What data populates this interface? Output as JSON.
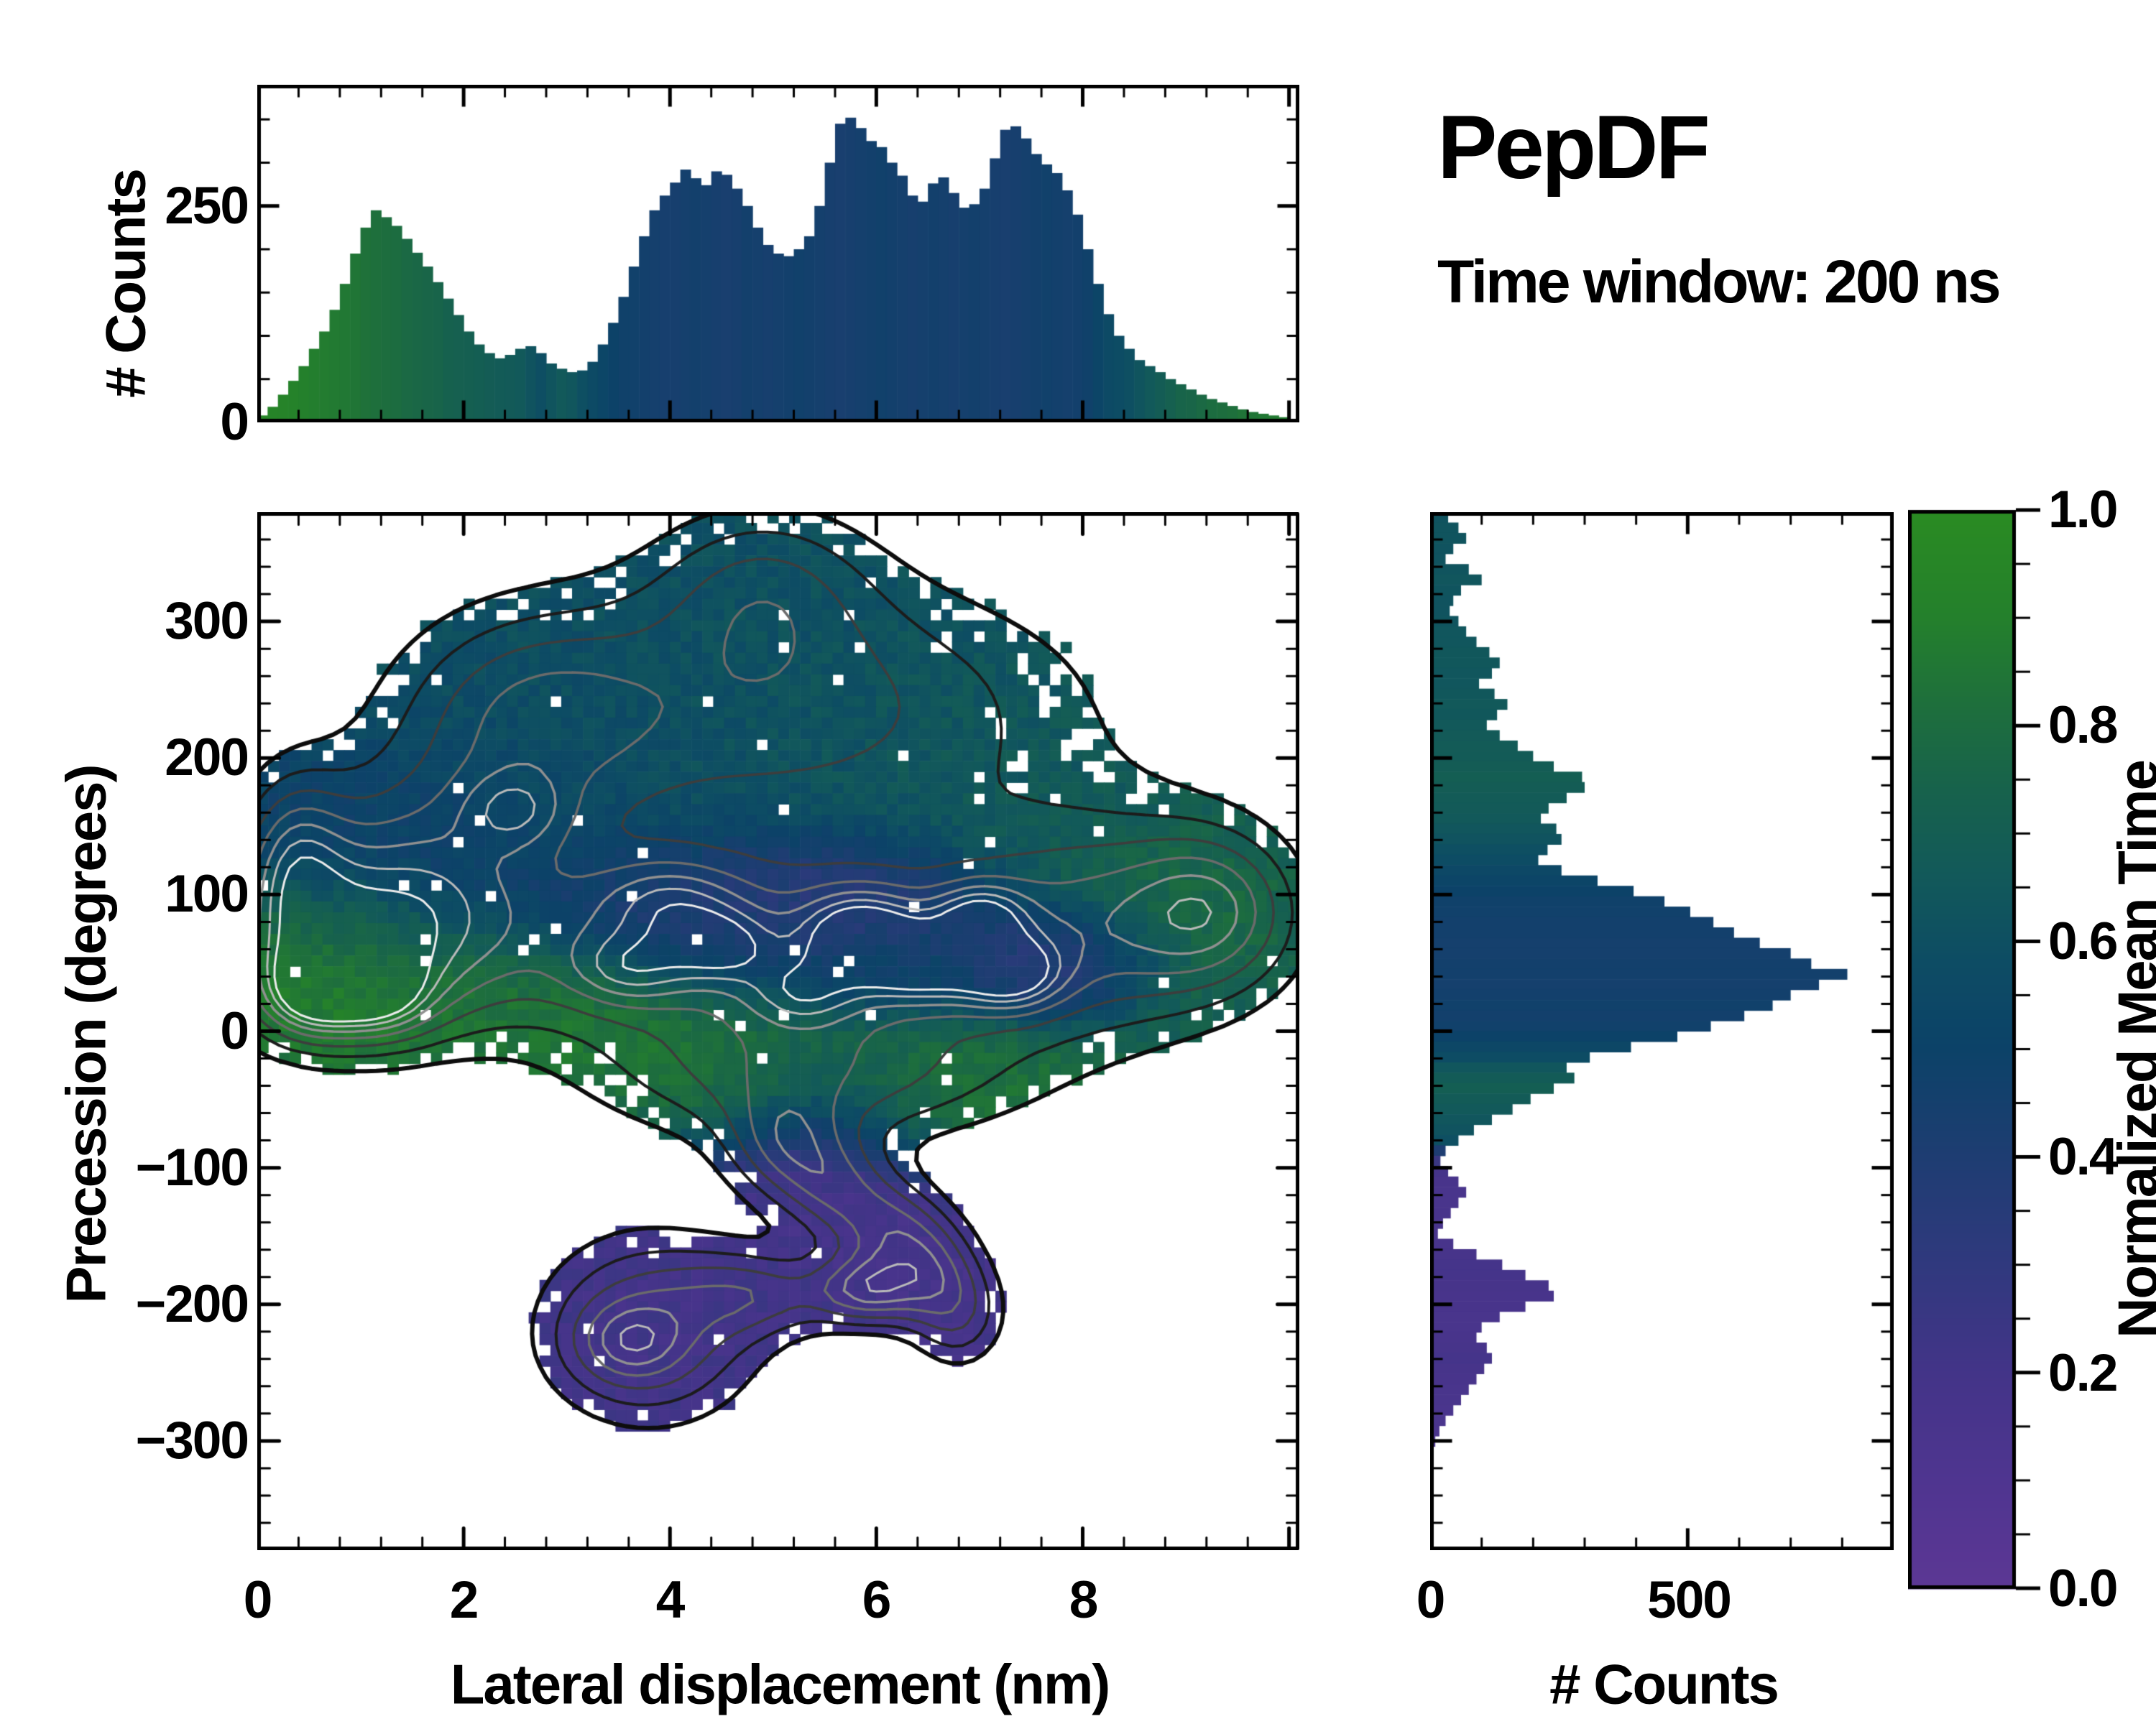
{
  "title": "PepDF",
  "subtitle": "Time window: 200 ns",
  "chart_data": {
    "type": "heatmap",
    "description": "2D histogram of precession vs lateral displacement colored by normalized mean time, with marginal count histograms and a colorbar",
    "colormap": {
      "stops": [
        [
          0.0,
          "#5c3794"
        ],
        [
          0.1,
          "#4f3590"
        ],
        [
          0.2,
          "#433488"
        ],
        [
          0.3,
          "#30397e"
        ],
        [
          0.4,
          "#1e3d72"
        ],
        [
          0.5,
          "#0c4268"
        ],
        [
          0.58,
          "#0d4c64"
        ],
        [
          0.66,
          "#12595a"
        ],
        [
          0.74,
          "#17624c"
        ],
        [
          0.82,
          "#1e6f3c"
        ],
        [
          0.9,
          "#24802c"
        ],
        [
          1.0,
          "#2a8b22"
        ]
      ]
    },
    "top_hist": {
      "ylabel": "# Counts",
      "ytick_labels": [
        "250",
        "0"
      ],
      "y_major": [
        0,
        250
      ],
      "y_minor_step": 50,
      "ylim": [
        0,
        390
      ],
      "x_range": [
        0,
        10.1
      ],
      "x_major": [
        0,
        2,
        4,
        6,
        8,
        10
      ],
      "x_minor_step": 0.4,
      "heights": [
        8,
        18,
        32,
        48,
        65,
        85,
        105,
        130,
        160,
        195,
        225,
        245,
        237,
        227,
        212,
        196,
        180,
        162,
        143,
        124,
        105,
        90,
        80,
        74,
        78,
        85,
        88,
        80,
        68,
        62,
        58,
        60,
        70,
        90,
        115,
        145,
        180,
        215,
        245,
        262,
        277,
        292,
        282,
        274,
        290,
        286,
        270,
        250,
        225,
        205,
        195,
        192,
        200,
        215,
        250,
        300,
        345,
        352,
        340,
        325,
        318,
        300,
        285,
        262,
        255,
        276,
        283,
        265,
        248,
        252,
        270,
        305,
        338,
        342,
        328,
        310,
        298,
        288,
        268,
        240,
        200,
        160,
        125,
        100,
        85,
        72,
        65,
        58,
        50,
        44,
        38,
        32,
        27,
        23,
        19,
        15,
        12,
        10,
        8,
        6
      ],
      "values": [
        0.95,
        0.94,
        0.93,
        0.92,
        0.9,
        0.89,
        0.88,
        0.87,
        0.86,
        0.85,
        0.83,
        0.82,
        0.81,
        0.8,
        0.78,
        0.77,
        0.76,
        0.75,
        0.73,
        0.72,
        0.71,
        0.7,
        0.69,
        0.68,
        0.67,
        0.66,
        0.62,
        0.59,
        0.63,
        0.66,
        0.64,
        0.6,
        0.56,
        0.53,
        0.5,
        0.48,
        0.47,
        0.46,
        0.45,
        0.44,
        0.44,
        0.45,
        0.46,
        0.45,
        0.44,
        0.43,
        0.44,
        0.46,
        0.45,
        0.44,
        0.45,
        0.46,
        0.47,
        0.46,
        0.45,
        0.44,
        0.43,
        0.44,
        0.45,
        0.46,
        0.47,
        0.46,
        0.45,
        0.44,
        0.45,
        0.46,
        0.45,
        0.44,
        0.45,
        0.46,
        0.45,
        0.44,
        0.43,
        0.44,
        0.45,
        0.46,
        0.47,
        0.46,
        0.45,
        0.46,
        0.48,
        0.52,
        0.56,
        0.58,
        0.6,
        0.63,
        0.66,
        0.69,
        0.72,
        0.75,
        0.76,
        0.78,
        0.8,
        0.81,
        0.82,
        0.84,
        0.85,
        0.86,
        0.87,
        0.88
      ]
    },
    "main_heatmap": {
      "xlabel": "Lateral displacement (nm)",
      "ylabel": "Precession (degrees)",
      "xtick_labels": [
        "0",
        "2",
        "4",
        "6",
        "8"
      ],
      "ytick_labels": [
        "300",
        "200",
        "100",
        "0",
        "−100",
        "−200",
        "−300"
      ],
      "x_major": [
        0,
        2,
        4,
        6,
        8,
        10
      ],
      "x_minor_step": 0.4,
      "y_major": [
        -300,
        -200,
        -100,
        0,
        100,
        200,
        300
      ],
      "y_minor_step": 20,
      "xlim": [
        0,
        10.1
      ],
      "ylim": [
        -380,
        380
      ],
      "grid": [
        96,
        96
      ],
      "seed": 7,
      "fill_threshold": 0.21,
      "background_value": {
        "v": 0.58,
        "w": 0.08
      },
      "density_blobs": [
        [
          5.1,
          235,
          2.2,
          75,
          0.5
        ],
        [
          4.9,
          330,
          0.75,
          45,
          0.3
        ],
        [
          2.6,
          230,
          0.9,
          55,
          0.35
        ],
        [
          1.4,
          115,
          1.05,
          55,
          0.5
        ],
        [
          0.8,
          45,
          0.85,
          45,
          0.55
        ],
        [
          4.6,
          60,
          2.3,
          52,
          0.55
        ],
        [
          8.3,
          80,
          1.1,
          60,
          0.45
        ],
        [
          5.4,
          -35,
          1.5,
          38,
          0.45
        ],
        [
          5.1,
          -85,
          0.4,
          28,
          0.4
        ],
        [
          5.6,
          -115,
          0.38,
          26,
          0.4
        ],
        [
          6.1,
          -142,
          0.38,
          25,
          0.4
        ],
        [
          6.5,
          -170,
          0.35,
          28,
          0.4
        ],
        [
          6.8,
          -208,
          0.35,
          30,
          0.4
        ],
        [
          3.8,
          -218,
          0.8,
          52,
          0.55
        ],
        [
          4.9,
          -192,
          0.55,
          22,
          0.35
        ],
        [
          9.3,
          90,
          0.55,
          40,
          0.4
        ],
        [
          0.35,
          125,
          0.35,
          45,
          0.4
        ]
      ],
      "density_peaks": [
        [
          0.5,
          28,
          0.32,
          22,
          0.42
        ],
        [
          1.15,
          25,
          0.36,
          20,
          0.38
        ],
        [
          5.85,
          72,
          0.4,
          22,
          0.5
        ],
        [
          6.45,
          48,
          0.42,
          20,
          0.45
        ],
        [
          7.3,
          42,
          0.36,
          19,
          0.5
        ],
        [
          7.0,
          84,
          0.32,
          17,
          0.4
        ],
        [
          4.0,
          95,
          0.5,
          22,
          0.3
        ],
        [
          3.6,
          45,
          0.42,
          19,
          0.3
        ],
        [
          2.5,
          162,
          0.36,
          20,
          0.26
        ],
        [
          5.9,
          -190,
          0.36,
          19,
          0.55
        ],
        [
          3.6,
          -228,
          0.36,
          20,
          0.28
        ],
        [
          4.5,
          62,
          0.36,
          18,
          0.3
        ],
        [
          5.3,
          28,
          0.4,
          18,
          0.3
        ]
      ],
      "value_blobs": [
        [
          5.1,
          245,
          2.3,
          80,
          0.62,
          1
        ],
        [
          7.6,
          180,
          1.1,
          60,
          0.68,
          1
        ],
        [
          4.9,
          330,
          0.8,
          45,
          0.6,
          1
        ],
        [
          1.5,
          122,
          1.1,
          50,
          0.46,
          1.3
        ],
        [
          0.75,
          45,
          0.8,
          40,
          0.93,
          1.5
        ],
        [
          2.4,
          35,
          0.7,
          30,
          0.86,
          1.1
        ],
        [
          4.2,
          88,
          1.1,
          32,
          0.37,
          1.3
        ],
        [
          5.7,
          98,
          0.8,
          26,
          0.27,
          1.3
        ],
        [
          5.7,
          45,
          1.1,
          26,
          0.5,
          1
        ],
        [
          7.8,
          58,
          0.55,
          22,
          0.24,
          1.4
        ],
        [
          8.8,
          92,
          0.7,
          40,
          0.8,
          1.4
        ],
        [
          3.3,
          5,
          1.1,
          30,
          0.88,
          1.1
        ],
        [
          5.2,
          -38,
          1.5,
          32,
          0.84,
          1.1
        ],
        [
          6.6,
          -62,
          0.7,
          26,
          0.86,
          1.2
        ],
        [
          5.6,
          -118,
          0.6,
          45,
          0.16,
          2
        ],
        [
          6.6,
          -188,
          0.5,
          42,
          0.16,
          2
        ],
        [
          3.8,
          -220,
          0.85,
          60,
          0.18,
          2
        ],
        [
          2.9,
          215,
          0.9,
          55,
          0.56,
          1
        ]
      ],
      "contour_levels": [
        {
          "level": 0.21,
          "color": "#0d0d0d",
          "width": 6
        },
        {
          "level": 0.33,
          "color": "#1c1c1c",
          "width": 4
        },
        {
          "level": 0.45,
          "color": "#3d3d3d",
          "width": 3.5
        },
        {
          "level": 0.57,
          "color": "#6b6b6b",
          "width": 3.5
        },
        {
          "level": 0.68,
          "color": "#909090",
          "width": 3.5
        },
        {
          "level": 0.78,
          "color": "#bababa",
          "width": 3
        },
        {
          "level": 0.87,
          "color": "#ececec",
          "width": 3
        }
      ]
    },
    "right_hist": {
      "xlabel": "# Counts",
      "xtick_labels": [
        "0",
        "500"
      ],
      "x_major": [
        0,
        500
      ],
      "x_minor_step": 100,
      "xlim": [
        0,
        900
      ],
      "y_range": [
        -380,
        380
      ],
      "y_major": [
        -300,
        -200,
        -100,
        0,
        100,
        200,
        300
      ],
      "y_minor_step": 20,
      "heights": [
        35,
        55,
        70,
        45,
        30,
        75,
        100,
        60,
        45,
        38,
        55,
        70,
        90,
        115,
        135,
        120,
        95,
        125,
        150,
        130,
        110,
        135,
        170,
        200,
        240,
        295,
        300,
        265,
        230,
        215,
        245,
        255,
        228,
        210,
        255,
        325,
        395,
        455,
        505,
        550,
        590,
        640,
        700,
        740,
        810,
        755,
        700,
        665,
        610,
        545,
        480,
        390,
        310,
        265,
        280,
        240,
        195,
        160,
        120,
        85,
        55,
        30,
        20,
        35,
        55,
        70,
        55,
        40,
        25,
        15,
        45,
        90,
        140,
        185,
        230,
        240,
        185,
        135,
        100,
        90,
        110,
        120,
        105,
        90,
        75,
        60,
        45,
        30,
        18,
        10,
        6,
        4,
        3,
        2,
        2,
        1,
        1,
        0,
        0,
        0
      ],
      "values": [
        0.62,
        0.63,
        0.63,
        0.62,
        0.62,
        0.63,
        0.64,
        0.63,
        0.62,
        0.62,
        0.63,
        0.64,
        0.64,
        0.65,
        0.65,
        0.64,
        0.64,
        0.65,
        0.66,
        0.65,
        0.66,
        0.67,
        0.68,
        0.68,
        0.69,
        0.7,
        0.69,
        0.68,
        0.67,
        0.66,
        0.64,
        0.62,
        0.6,
        0.58,
        0.55,
        0.52,
        0.5,
        0.48,
        0.47,
        0.46,
        0.46,
        0.45,
        0.45,
        0.46,
        0.46,
        0.45,
        0.46,
        0.47,
        0.46,
        0.47,
        0.5,
        0.54,
        0.58,
        0.64,
        0.68,
        0.7,
        0.68,
        0.66,
        0.64,
        0.62,
        0.6,
        0.4,
        0.25,
        0.18,
        0.16,
        0.15,
        0.15,
        0.16,
        0.15,
        0.15,
        0.16,
        0.17,
        0.18,
        0.18,
        0.17,
        0.16,
        0.16,
        0.15,
        0.15,
        0.16,
        0.17,
        0.18,
        0.17,
        0.16,
        0.15,
        0.15,
        0.14,
        0.14,
        0.13,
        0.13,
        0.13,
        0.13,
        0.12,
        0.12,
        0.12,
        0.12,
        0.12,
        0.12,
        0.12,
        0.12
      ]
    },
    "colorbar": {
      "label": "Normalized Mean Time",
      "tick_labels": [
        "1.0",
        "0.8",
        "0.6",
        "0.4",
        "0.2",
        "0.0"
      ],
      "tick_values": [
        1.0,
        0.8,
        0.6,
        0.4,
        0.2,
        0.0
      ],
      "minor_step": 0.05,
      "range": [
        0.0,
        1.0
      ]
    }
  }
}
